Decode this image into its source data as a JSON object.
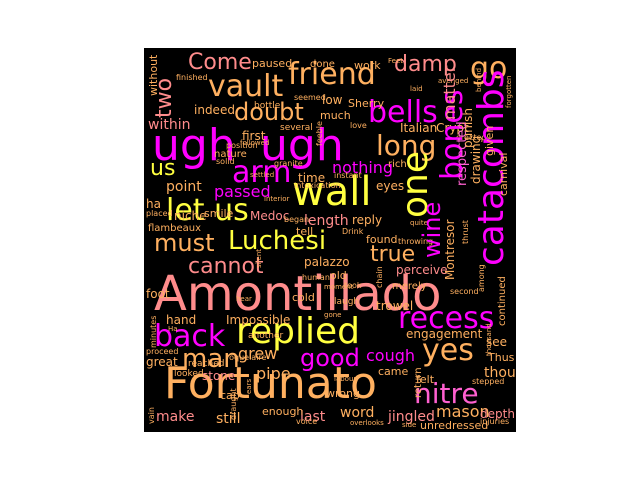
{
  "colors": {
    "background": "#000000",
    "page": "#ffffff",
    "palette": [
      "#ff00ff",
      "#ff8c8c",
      "#ffb060",
      "#ffff40",
      "#ff60d0",
      "#e020e0"
    ]
  },
  "words": {
    "amontillado": "Amontillado",
    "fortunato": "Fortunato",
    "ugh1": "ugh",
    "ugh2": "ugh",
    "replied": "replied",
    "luchesi": "Luchesi",
    "must": "must",
    "catacombs": "catacombs",
    "bones": "bones",
    "wall": "wall",
    "friend": "friend",
    "vault": "vault",
    "come": "Come",
    "two": "two",
    "bells": "bells",
    "doubt": "doubt",
    "go": "go",
    "damp": "damp",
    "one": "one",
    "arm": "arm",
    "long": "long",
    "let_us": "let us",
    "recess": "recess",
    "back": "back",
    "yes": "yes",
    "nitre": "nitre",
    "man": "man",
    "good": "good",
    "cannot": "cannot",
    "wine": "wine",
    "true": "true",
    "us": "us",
    "passed": "passed",
    "within": "within",
    "nothing": "nothing",
    "cough": "cough",
    "grew": "grew",
    "pipe": "pipe",
    "mason": "mason",
    "thought": "thought",
    "make": "make",
    "still": "still",
    "last": "last",
    "word": "word",
    "jingled": "jingled",
    "depth": "depth",
    "unredressed": "unredressed",
    "stone": "stone",
    "great": "great",
    "hand": "hand",
    "foot": "foot",
    "flambeaux": "flambeaux",
    "impossible": "Impossible",
    "point": "point",
    "length": "length",
    "reply": "reply",
    "eyes": "eyes",
    "italian": "Italian",
    "crypt": "Crypt",
    "sherry": "Sherry",
    "low": "low",
    "work": "work",
    "matter": "matter",
    "indeed": "indeed",
    "first": "first",
    "paused": "paused",
    "done": "done",
    "time": "time",
    "ha": "ha",
    "niche": "niche",
    "smile": "smile",
    "medoc": "Medoc",
    "tell": "tell",
    "palazzo": "palazzo",
    "found": "found",
    "perceive": "perceive",
    "trowel": "trowel",
    "engagement": "engagement",
    "see": "see",
    "thus": "Thus",
    "felt": "felt",
    "came": "came",
    "wrong": "wrong",
    "cold": "cold",
    "old": "old",
    "enough": "enough",
    "much": "much",
    "within2": "without",
    "bottle": "bottle",
    "several": "several",
    "respected": "respected",
    "punish": "punish",
    "drawing": "drawing",
    "carnival": "carnival",
    "given": "given",
    "thrust": "thrust",
    "continued": "continued",
    "contresor": "Montresor",
    "merely": "merely",
    "return": "return",
    "cap": "cap",
    "rich": "rich",
    "love": "love",
    "instant": "instant",
    "intoxication": "intoxication",
    "nature": "nature",
    "reached": "reached",
    "placed": "placed",
    "proceed": "proceed",
    "looked": "looked",
    "draught": "draught",
    "voice": "voice",
    "throwing": "throwing",
    "among": "among",
    "chain": "chain",
    "laugh": "laugh",
    "another": "another",
    "feeble": "feeble",
    "minutes": "minutes",
    "vain": "vain",
    "stepped": "stepped",
    "second": "second",
    "thousand": "thousand",
    "injuries": "injuries",
    "erected": "erected",
    "avenged": "avenged",
    "laid": "laid",
    "seemed": "seemed",
    "finished": "finished",
    "silent": "silent",
    "moment": "moment",
    "ears": "ears",
    "began": "began",
    "hear": "hear",
    "behind": "behind",
    "granite": "granite",
    "drink": "Drink",
    "roquelaire": "roquelaire",
    "took": "took",
    "labour": "labour",
    "position": "position",
    "quite": "quite",
    "foot2": "Feet",
    "forgotten": "forgotten",
    "solid": "solid",
    "ha2": "Ha",
    "gone": "gone",
    "side": "side",
    "human": "human",
    "overlooks": "overlooks",
    "followed": "followed",
    "interior": "interior",
    "settled": "settled"
  }
}
